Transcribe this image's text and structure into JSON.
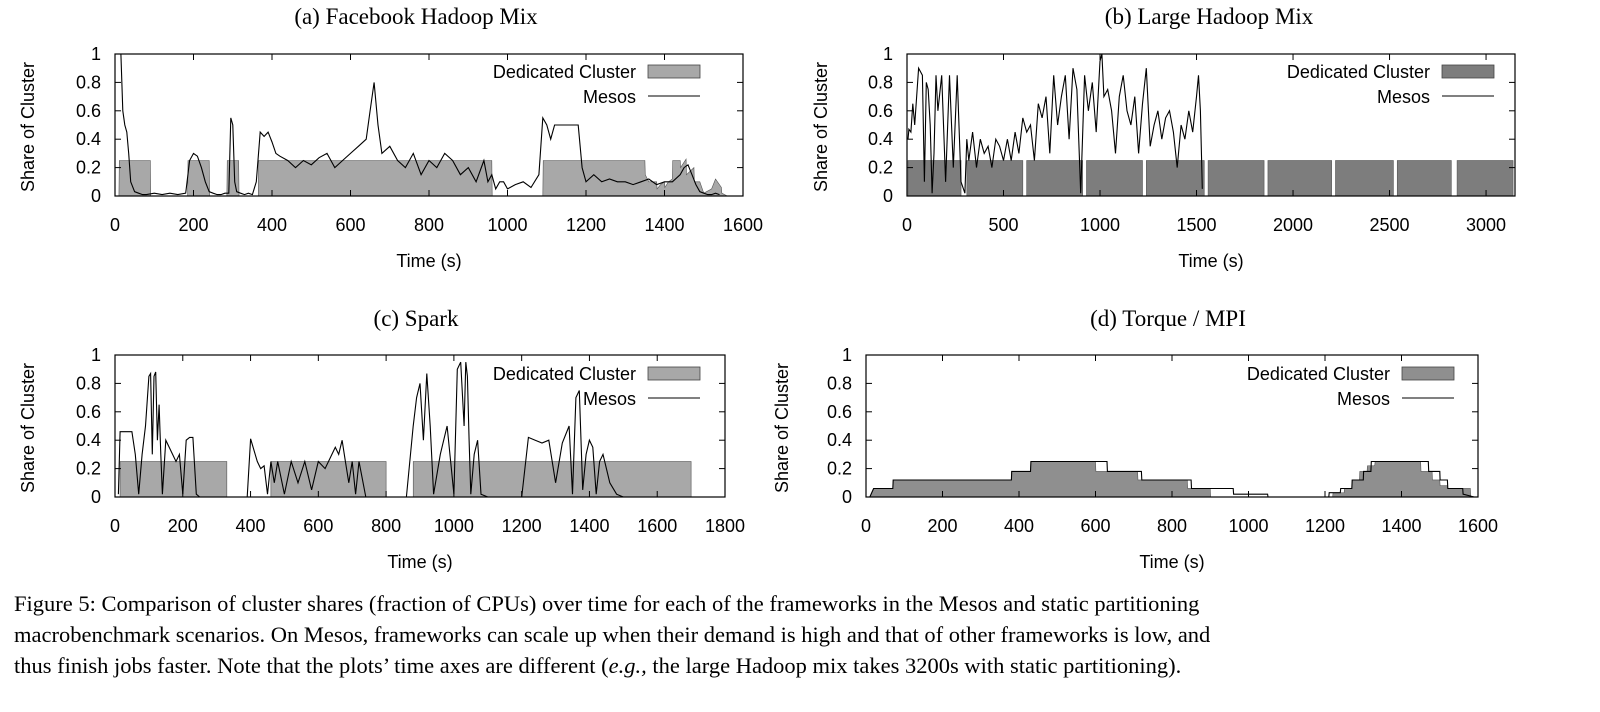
{
  "chart_data": [
    {
      "type": "area",
      "title": "(a) Facebook Hadoop Mix",
      "xlabel": "Time (s)",
      "ylabel": "Share of Cluster",
      "xlim": [
        0,
        1600
      ],
      "ylim": [
        0,
        1
      ],
      "xticks": [
        "0",
        "200",
        "400",
        "600",
        "800",
        "1000",
        "1200",
        "1400",
        "1600"
      ],
      "yticks": [
        "0",
        "0.2",
        "0.4",
        "0.6",
        "0.8",
        "1"
      ],
      "legend": [
        "Dedicated Cluster",
        "Mesos"
      ],
      "legend_position": "top-right",
      "series": [
        {
          "name": "Dedicated Cluster",
          "style": "area",
          "x": [
            0,
            10,
            11,
            90,
            91,
            185,
            186,
            240,
            241,
            285,
            286,
            315,
            316,
            365,
            366,
            960,
            961,
            1090,
            1091,
            1350,
            1351,
            1360,
            1380,
            1381,
            1390,
            1400,
            1401,
            1410,
            1420,
            1421,
            1440,
            1441,
            1455,
            1456,
            1475,
            1476,
            1490,
            1500,
            1520,
            1530,
            1545,
            1546,
            1560
          ],
          "values": [
            0,
            0,
            0.25,
            0.25,
            0,
            0,
            0.25,
            0.25,
            0,
            0,
            0.25,
            0.25,
            0,
            0,
            0.25,
            0.25,
            0,
            0,
            0.25,
            0.25,
            0.15,
            0.1,
            0.1,
            0.05,
            0.08,
            0.1,
            0.06,
            0.1,
            0.12,
            0.25,
            0.25,
            0.2,
            0.26,
            0.15,
            0.2,
            0.1,
            0.1,
            0.02,
            0.05,
            0.12,
            0.06,
            0.02,
            0
          ]
        },
        {
          "name": "Mesos",
          "style": "line",
          "x": [
            5,
            15,
            20,
            25,
            30,
            35,
            40,
            50,
            60,
            70,
            80,
            100,
            120,
            140,
            160,
            180,
            190,
            200,
            210,
            220,
            230,
            240,
            250,
            260,
            270,
            280,
            290,
            295,
            300,
            305,
            310,
            320,
            330,
            340,
            350,
            360,
            370,
            380,
            390,
            400,
            410,
            420,
            440,
            460,
            480,
            500,
            520,
            540,
            560,
            580,
            600,
            620,
            640,
            650,
            660,
            670,
            680,
            700,
            720,
            740,
            760,
            780,
            800,
            820,
            840,
            860,
            880,
            900,
            920,
            940,
            950,
            960,
            970,
            980,
            990,
            1000,
            1020,
            1040,
            1060,
            1080,
            1090,
            1100,
            1110,
            1120,
            1140,
            1160,
            1180,
            1190,
            1200,
            1220,
            1240,
            1260,
            1280,
            1300,
            1320,
            1340,
            1360,
            1380,
            1400,
            1420,
            1440,
            1450,
            1460,
            1470,
            1480,
            1490,
            1500,
            1510,
            1520,
            1530,
            1540
          ],
          "values": [
            1,
            1,
            0.6,
            0.5,
            0.45,
            0.3,
            0.1,
            0.03,
            0.02,
            0.01,
            0.01,
            0.02,
            0.01,
            0.02,
            0.01,
            0.02,
            0.25,
            0.3,
            0.28,
            0.2,
            0.1,
            0.03,
            0.02,
            0.01,
            0.01,
            0.02,
            0.02,
            0.55,
            0.5,
            0.1,
            0.03,
            0.02,
            0.01,
            0.02,
            0.01,
            0.1,
            0.45,
            0.42,
            0.45,
            0.38,
            0.3,
            0.28,
            0.25,
            0.2,
            0.25,
            0.22,
            0.27,
            0.3,
            0.2,
            0.25,
            0.3,
            0.35,
            0.4,
            0.6,
            0.8,
            0.5,
            0.3,
            0.35,
            0.25,
            0.2,
            0.3,
            0.15,
            0.25,
            0.2,
            0.3,
            0.25,
            0.15,
            0.2,
            0.1,
            0.25,
            0.1,
            0.15,
            0.05,
            0.1,
            0.1,
            0.05,
            0.08,
            0.1,
            0.06,
            0.15,
            0.55,
            0.5,
            0.4,
            0.5,
            0.5,
            0.5,
            0.5,
            0.2,
            0.1,
            0.15,
            0.1,
            0.12,
            0.1,
            0.1,
            0.08,
            0.1,
            0.12,
            0.08,
            0.1,
            0.1,
            0.15,
            0.2,
            0.22,
            0.15,
            0.08,
            0.03,
            0.02,
            0.01,
            0.01,
            0.02,
            0.01
          ]
        }
      ]
    },
    {
      "type": "area",
      "title": "(b) Large Hadoop Mix",
      "xlabel": "Time (s)",
      "ylabel": "Share of Cluster",
      "xlim": [
        0,
        3150
      ],
      "ylim": [
        0,
        1
      ],
      "xticks": [
        "0",
        "500",
        "1000",
        "1500",
        "2000",
        "2500",
        "3000"
      ],
      "xtick_values": [
        0,
        500,
        1000,
        1500,
        2000,
        2500,
        3000
      ],
      "yticks": [
        "0",
        "0.2",
        "0.4",
        "0.6",
        "0.8",
        "1"
      ],
      "legend": [
        "Dedicated Cluster",
        "Mesos"
      ],
      "legend_position": "top-right",
      "bands": [
        [
          5,
          280
        ],
        [
          310,
          600
        ],
        [
          620,
          910
        ],
        [
          930,
          1220
        ],
        [
          1240,
          1540
        ],
        [
          1560,
          1850
        ],
        [
          1870,
          2200
        ],
        [
          2220,
          2520
        ],
        [
          2540,
          2820
        ],
        [
          2850,
          3140
        ]
      ],
      "band_value": 0.25,
      "series": [
        {
          "name": "Mesos",
          "style": "line",
          "x": [
            5,
            10,
            20,
            30,
            40,
            60,
            80,
            90,
            100,
            110,
            120,
            130,
            140,
            150,
            160,
            180,
            200,
            220,
            240,
            260,
            280,
            300,
            310,
            320,
            340,
            360,
            380,
            400,
            420,
            440,
            460,
            480,
            500,
            520,
            540,
            560,
            580,
            600,
            620,
            640,
            660,
            680,
            700,
            720,
            740,
            760,
            780,
            800,
            820,
            840,
            860,
            880,
            900,
            920,
            940,
            960,
            980,
            1000,
            1010,
            1020,
            1040,
            1060,
            1080,
            1100,
            1120,
            1140,
            1160,
            1180,
            1200,
            1220,
            1240,
            1260,
            1280,
            1300,
            1320,
            1340,
            1360,
            1380,
            1400,
            1420,
            1440,
            1460,
            1480,
            1500,
            1510,
            1520,
            1530
          ],
          "values": [
            0.4,
            0.47,
            0.45,
            0.65,
            0.5,
            0.9,
            0.85,
            0.1,
            0.8,
            0.75,
            0.5,
            0.02,
            0.3,
            0.85,
            0.6,
            0.85,
            0.1,
            0.85,
            0.2,
            0.85,
            0.1,
            0.02,
            0.4,
            0.25,
            0.45,
            0.2,
            0.4,
            0.3,
            0.35,
            0.2,
            0.4,
            0.35,
            0.25,
            0.4,
            0.25,
            0.45,
            0.3,
            0.55,
            0.45,
            0.5,
            0.25,
            0.65,
            0.55,
            0.7,
            0.3,
            0.85,
            0.5,
            0.7,
            0.85,
            0.4,
            0.9,
            0.75,
            0.02,
            0.85,
            0.6,
            0.8,
            0.45,
            0.95,
            1,
            0.7,
            0.75,
            0.6,
            0.3,
            0.7,
            0.85,
            0.6,
            0.5,
            0.7,
            0.3,
            0.65,
            0.9,
            0.35,
            0.5,
            0.6,
            0.4,
            0.55,
            0.6,
            0.45,
            0.2,
            0.5,
            0.4,
            0.6,
            0.45,
            0.7,
            0.85,
            0.6,
            0.05
          ]
        }
      ]
    },
    {
      "type": "area",
      "title": "(c) Spark",
      "xlabel": "Time (s)",
      "ylabel": "Share of Cluster",
      "xlim": [
        0,
        1800
      ],
      "ylim": [
        0,
        1
      ],
      "xticks": [
        "0",
        "200",
        "400",
        "600",
        "800",
        "1000",
        "1200",
        "1400",
        "1600",
        "1800"
      ],
      "yticks": [
        "0",
        "0.2",
        "0.4",
        "0.6",
        "0.8",
        "1"
      ],
      "legend": [
        "Dedicated Cluster",
        "Mesos"
      ],
      "legend_position": "top-right",
      "bands": [
        [
          15,
          330
        ],
        [
          460,
          800
        ],
        [
          880,
          1700
        ]
      ],
      "band_value": 0.25,
      "series": [
        {
          "name": "Mesos",
          "style": "line",
          "x": [
            10,
            15,
            20,
            30,
            50,
            60,
            70,
            80,
            90,
            100,
            105,
            110,
            115,
            120,
            125,
            130,
            135,
            140,
            150,
            160,
            170,
            180,
            190,
            200,
            210,
            220,
            230,
            240,
            250,
            260,
            270,
            280,
            390,
            400,
            420,
            430,
            440,
            450,
            460,
            470,
            480,
            500,
            520,
            540,
            560,
            580,
            600,
            620,
            640,
            650,
            660,
            670,
            680,
            690,
            700,
            710,
            720,
            740,
            760,
            780,
            800,
            820,
            840,
            860,
            880,
            890,
            900,
            910,
            920,
            930,
            940,
            960,
            980,
            1000,
            1010,
            1020,
            1030,
            1035,
            1040,
            1045,
            1050,
            1060,
            1070,
            1080,
            1100,
            1120,
            1140,
            1160,
            1180,
            1200,
            1220,
            1240,
            1260,
            1280,
            1300,
            1320,
            1340,
            1350,
            1360,
            1370,
            1380,
            1390,
            1400,
            1410,
            1420,
            1430,
            1440,
            1460,
            1480,
            1500
          ],
          "values": [
            0.02,
            0.46,
            0.46,
            0.46,
            0.46,
            0.3,
            0.02,
            0.3,
            0.5,
            0.85,
            0.87,
            0.3,
            0.85,
            0.88,
            0.4,
            0.65,
            0.3,
            0.02,
            0.4,
            0.35,
            0.3,
            0.25,
            0.3,
            0.02,
            0.4,
            0.42,
            0.42,
            0.02,
            0.0,
            0.0,
            0.0,
            0.0,
            0.0,
            0.41,
            0.25,
            0.2,
            0.22,
            0.02,
            0.25,
            0.1,
            0.25,
            0.02,
            0.25,
            0.1,
            0.25,
            0.05,
            0.25,
            0.2,
            0.3,
            0.35,
            0.3,
            0.4,
            0.25,
            0.1,
            0.25,
            0.02,
            0.25,
            0.0,
            0.0,
            0.0,
            0.0,
            0.0,
            0.0,
            0.0,
            0.5,
            0.7,
            0.8,
            0.4,
            0.87,
            0.5,
            0.02,
            0.3,
            0.5,
            0.02,
            0.9,
            0.95,
            0.5,
            0.95,
            0.85,
            0.4,
            0.02,
            0.3,
            0.4,
            0.02,
            0.0,
            0.0,
            0.0,
            0.0,
            0.0,
            0.0,
            0.42,
            0.4,
            0.38,
            0.4,
            0.1,
            0.38,
            0.5,
            0.02,
            0.7,
            0.75,
            0.05,
            0.3,
            0.4,
            0.35,
            0.02,
            0.25,
            0.3,
            0.1,
            0.02,
            0.0
          ]
        }
      ]
    },
    {
      "type": "area",
      "title": "(d) Torque / MPI",
      "xlabel": "Time (s)",
      "ylabel": "Share of Cluster",
      "xlim": [
        0,
        1600
      ],
      "ylim": [
        0,
        1
      ],
      "xticks": [
        "0",
        "200",
        "400",
        "600",
        "800",
        "1000",
        "1200",
        "1400",
        "1600"
      ],
      "yticks": [
        "0",
        "0.2",
        "0.4",
        "0.6",
        "0.8",
        "1"
      ],
      "legend": [
        "Dedicated Cluster",
        "Mesos"
      ],
      "legend_position": "top-right",
      "series": [
        {
          "name": "Dedicated Cluster",
          "style": "area",
          "x": [
            10,
            20,
            21,
            70,
            71,
            380,
            381,
            430,
            431,
            600,
            601,
            710,
            711,
            840,
            841,
            900,
            901,
            1220,
            1221,
            1250,
            1251,
            1270,
            1271,
            1290,
            1291,
            1310,
            1311,
            1330,
            1331,
            1450,
            1451,
            1480,
            1481,
            1500,
            1501,
            1520,
            1521,
            1580,
            1581
          ],
          "values": [
            0,
            0.06,
            0.06,
            0.06,
            0.12,
            0.12,
            0.18,
            0.18,
            0.25,
            0.25,
            0.18,
            0.18,
            0.12,
            0.12,
            0.06,
            0.06,
            0,
            0,
            0.03,
            0.03,
            0.06,
            0.06,
            0.12,
            0.12,
            0.18,
            0.18,
            0.22,
            0.22,
            0.25,
            0.25,
            0.18,
            0.18,
            0.12,
            0.12,
            0.08,
            0.08,
            0.06,
            0.06,
            0
          ]
        },
        {
          "name": "Mesos",
          "style": "line",
          "x": [
            10,
            20,
            70,
            71,
            380,
            381,
            430,
            431,
            630,
            631,
            720,
            721,
            850,
            851,
            960,
            961,
            1050,
            1051,
            1210,
            1211,
            1240,
            1241,
            1270,
            1271,
            1300,
            1301,
            1320,
            1321,
            1470,
            1471,
            1500,
            1501,
            1520,
            1521,
            1560,
            1561,
            1590
          ],
          "values": [
            0,
            0.06,
            0.06,
            0.12,
            0.12,
            0.18,
            0.18,
            0.25,
            0.25,
            0.18,
            0.18,
            0.12,
            0.12,
            0.06,
            0.06,
            0.02,
            0.02,
            0,
            0,
            0.03,
            0.03,
            0.06,
            0.06,
            0.12,
            0.12,
            0.18,
            0.18,
            0.25,
            0.25,
            0.18,
            0.18,
            0.12,
            0.12,
            0.06,
            0.06,
            0.02,
            0
          ]
        }
      ]
    }
  ],
  "caption": {
    "line1": "Figure 5: Comparison of cluster shares (fraction of CPUs) over time for each of the frameworks in the Mesos and static partitioning",
    "line2": "macrobenchmark scenarios. On Mesos, frameworks can scale up when their demand is high and that of other frameworks is low, and",
    "line3_a": "thus finish jobs faster. Note that the plots’ time axes are different (",
    "line3_em": "e.g.,",
    "line3_b": " the large Hadoop mix takes 3200s with static partitioning)."
  }
}
